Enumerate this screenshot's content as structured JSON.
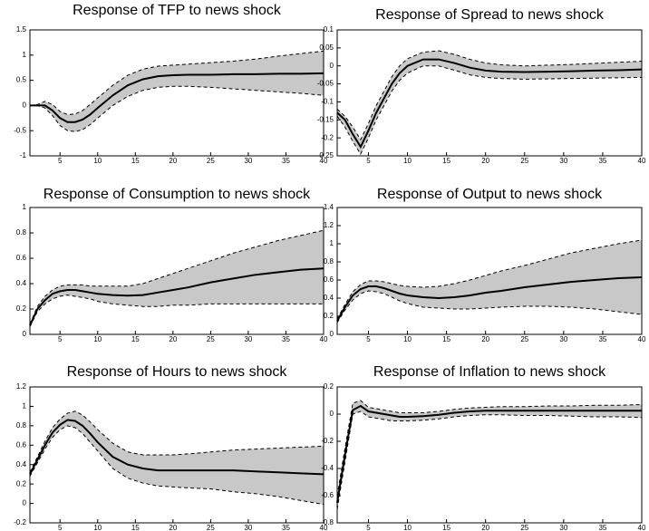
{
  "chart_data": [
    {
      "type": "line",
      "title": "Response of TFP to news shock",
      "x": [
        1,
        2,
        3,
        4,
        5,
        6,
        7,
        8,
        9,
        10,
        12,
        14,
        16,
        18,
        20,
        22,
        25,
        28,
        31,
        34,
        37,
        40
      ],
      "values": [
        0,
        0,
        0,
        -0.1,
        -0.25,
        -0.33,
        -0.33,
        -0.28,
        -0.18,
        -0.05,
        0.2,
        0.4,
        0.52,
        0.58,
        0.6,
        0.61,
        0.61,
        0.62,
        0.62,
        0.63,
        0.63,
        0.64
      ],
      "lower": [
        0,
        0,
        -0.05,
        -0.2,
        -0.4,
        -0.5,
        -0.52,
        -0.48,
        -0.38,
        -0.25,
        0,
        0.18,
        0.3,
        0.36,
        0.38,
        0.38,
        0.36,
        0.33,
        0.3,
        0.27,
        0.24,
        0.2
      ],
      "upper": [
        0,
        0.02,
        0.08,
        0.02,
        -0.12,
        -0.18,
        -0.17,
        -0.1,
        0.02,
        0.15,
        0.4,
        0.6,
        0.72,
        0.78,
        0.8,
        0.82,
        0.85,
        0.88,
        0.92,
        0.98,
        1.03,
        1.08
      ],
      "color": "#000000",
      "band_color": "#c8c8c8",
      "xlim": [
        1,
        40
      ],
      "xticks": [
        5,
        10,
        15,
        20,
        25,
        30,
        35,
        40
      ],
      "ylim": [
        -1,
        1.5
      ],
      "yticks": [
        -1,
        -0.5,
        0,
        0.5,
        1,
        1.5
      ]
    },
    {
      "type": "line",
      "title": "Response of Spread to news shock",
      "x": [
        1,
        2,
        3,
        4,
        5,
        6,
        7,
        8,
        9,
        10,
        12,
        14,
        16,
        18,
        20,
        22,
        25,
        28,
        31,
        34,
        37,
        40
      ],
      "values": [
        -0.13,
        -0.15,
        -0.19,
        -0.225,
        -0.18,
        -0.13,
        -0.09,
        -0.05,
        -0.02,
        0,
        0.018,
        0.018,
        0.008,
        -0.005,
        -0.013,
        -0.016,
        -0.017,
        -0.016,
        -0.015,
        -0.013,
        -0.012,
        -0.01
      ],
      "lower": [
        -0.14,
        -0.17,
        -0.21,
        -0.245,
        -0.2,
        -0.15,
        -0.11,
        -0.07,
        -0.04,
        -0.02,
        0,
        0,
        -0.012,
        -0.025,
        -0.032,
        -0.035,
        -0.037,
        -0.036,
        -0.035,
        -0.034,
        -0.033,
        -0.032
      ],
      "upper": [
        -0.12,
        -0.14,
        -0.17,
        -0.205,
        -0.16,
        -0.11,
        -0.07,
        -0.03,
        0,
        0.02,
        0.038,
        0.042,
        0.032,
        0.018,
        0.008,
        0.003,
        0,
        0.002,
        0.004,
        0.007,
        0.01,
        0.013
      ],
      "color": "#000000",
      "band_color": "#c8c8c8",
      "xlim": [
        1,
        40
      ],
      "xticks": [
        5,
        10,
        15,
        20,
        25,
        30,
        35,
        40
      ],
      "ylim": [
        -0.25,
        0.1
      ],
      "yticks": [
        -0.25,
        -0.2,
        -0.15,
        -0.1,
        -0.05,
        0,
        0.05,
        0.1
      ]
    },
    {
      "type": "line",
      "title": "Response of Consumption to news shock",
      "x": [
        1,
        2,
        3,
        4,
        5,
        6,
        7,
        8,
        9,
        10,
        12,
        14,
        16,
        18,
        20,
        22,
        25,
        28,
        31,
        34,
        37,
        40
      ],
      "values": [
        0.07,
        0.2,
        0.27,
        0.32,
        0.34,
        0.35,
        0.35,
        0.34,
        0.33,
        0.32,
        0.31,
        0.305,
        0.31,
        0.33,
        0.35,
        0.37,
        0.41,
        0.44,
        0.47,
        0.49,
        0.51,
        0.52
      ],
      "lower": [
        0.06,
        0.18,
        0.24,
        0.28,
        0.3,
        0.31,
        0.3,
        0.29,
        0.28,
        0.26,
        0.24,
        0.23,
        0.22,
        0.22,
        0.23,
        0.23,
        0.24,
        0.24,
        0.24,
        0.24,
        0.24,
        0.24
      ],
      "upper": [
        0.08,
        0.22,
        0.3,
        0.35,
        0.38,
        0.39,
        0.39,
        0.39,
        0.38,
        0.38,
        0.38,
        0.38,
        0.4,
        0.44,
        0.48,
        0.52,
        0.58,
        0.64,
        0.69,
        0.74,
        0.78,
        0.82
      ],
      "color": "#000000",
      "band_color": "#c8c8c8",
      "xlim": [
        1,
        40
      ],
      "xticks": [
        5,
        10,
        15,
        20,
        25,
        30,
        35,
        40
      ],
      "ylim": [
        0,
        1
      ],
      "yticks": [
        0,
        0.2,
        0.4,
        0.6,
        0.8,
        1
      ]
    },
    {
      "type": "line",
      "title": "Response of Output to news shock",
      "x": [
        1,
        2,
        3,
        4,
        5,
        6,
        7,
        8,
        9,
        10,
        12,
        14,
        16,
        18,
        20,
        22,
        25,
        28,
        31,
        34,
        37,
        40
      ],
      "values": [
        0.15,
        0.3,
        0.43,
        0.5,
        0.53,
        0.53,
        0.51,
        0.48,
        0.45,
        0.43,
        0.41,
        0.4,
        0.41,
        0.43,
        0.46,
        0.48,
        0.52,
        0.55,
        0.58,
        0.6,
        0.62,
        0.63
      ],
      "lower": [
        0.13,
        0.27,
        0.38,
        0.45,
        0.48,
        0.47,
        0.45,
        0.41,
        0.37,
        0.34,
        0.3,
        0.29,
        0.28,
        0.28,
        0.29,
        0.3,
        0.31,
        0.31,
        0.3,
        0.28,
        0.25,
        0.22
      ],
      "upper": [
        0.17,
        0.33,
        0.47,
        0.55,
        0.59,
        0.59,
        0.58,
        0.56,
        0.54,
        0.53,
        0.52,
        0.53,
        0.56,
        0.6,
        0.65,
        0.7,
        0.76,
        0.83,
        0.9,
        0.95,
        1.0,
        1.04
      ],
      "color": "#000000",
      "band_color": "#c8c8c8",
      "xlim": [
        1,
        40
      ],
      "xticks": [
        5,
        10,
        15,
        20,
        25,
        30,
        35,
        40
      ],
      "ylim": [
        0,
        1.4
      ],
      "yticks": [
        0,
        0.2,
        0.4,
        0.6,
        0.8,
        1,
        1.2,
        1.4
      ]
    },
    {
      "type": "line",
      "title": "Response of Hours to news shock",
      "x": [
        1,
        2,
        3,
        4,
        5,
        6,
        7,
        8,
        9,
        10,
        12,
        14,
        16,
        18,
        20,
        22,
        25,
        28,
        31,
        34,
        37,
        40
      ],
      "values": [
        0.3,
        0.45,
        0.6,
        0.73,
        0.81,
        0.86,
        0.85,
        0.8,
        0.72,
        0.63,
        0.48,
        0.4,
        0.36,
        0.34,
        0.34,
        0.34,
        0.34,
        0.34,
        0.33,
        0.32,
        0.31,
        0.3
      ],
      "lower": [
        0.28,
        0.42,
        0.56,
        0.68,
        0.76,
        0.8,
        0.78,
        0.72,
        0.63,
        0.54,
        0.36,
        0.26,
        0.21,
        0.18,
        0.17,
        0.16,
        0.15,
        0.12,
        0.1,
        0.07,
        0.03,
        -0.01
      ],
      "upper": [
        0.32,
        0.48,
        0.64,
        0.78,
        0.87,
        0.93,
        0.95,
        0.91,
        0.84,
        0.76,
        0.62,
        0.53,
        0.5,
        0.5,
        0.5,
        0.51,
        0.53,
        0.55,
        0.56,
        0.57,
        0.58,
        0.59
      ],
      "color": "#000000",
      "band_color": "#c8c8c8",
      "xlim": [
        1,
        40
      ],
      "xticks": [
        5,
        10,
        15,
        20,
        25,
        30,
        35,
        40
      ],
      "ylim": [
        -0.2,
        1.2
      ],
      "yticks": [
        -0.2,
        0,
        0.2,
        0.4,
        0.6,
        0.8,
        1,
        1.2
      ]
    },
    {
      "type": "line",
      "title": "Response of Inflation to news shock",
      "x": [
        1,
        2,
        3,
        4,
        5,
        6,
        7,
        8,
        9,
        10,
        12,
        14,
        16,
        18,
        20,
        22,
        25,
        28,
        31,
        34,
        37,
        40
      ],
      "values": [
        -0.65,
        -0.3,
        0.03,
        0.06,
        0.02,
        0.01,
        0,
        -0.01,
        -0.02,
        -0.02,
        -0.015,
        -0.005,
        0.01,
        0.02,
        0.025,
        0.025,
        0.025,
        0.025,
        0.025,
        0.025,
        0.025,
        0.025
      ],
      "lower": [
        -0.7,
        -0.35,
        0,
        0.02,
        -0.02,
        -0.03,
        -0.04,
        -0.05,
        -0.05,
        -0.05,
        -0.045,
        -0.035,
        -0.02,
        -0.01,
        -0.005,
        -0.005,
        -0.01,
        -0.01,
        -0.015,
        -0.02,
        -0.02,
        -0.025
      ],
      "upper": [
        -0.6,
        -0.25,
        0.08,
        0.1,
        0.05,
        0.04,
        0.03,
        0.02,
        0.01,
        0.01,
        0.01,
        0.02,
        0.035,
        0.045,
        0.05,
        0.055,
        0.055,
        0.06,
        0.06,
        0.065,
        0.065,
        0.07
      ],
      "color": "#000000",
      "band_color": "#c8c8c8",
      "xlim": [
        1,
        40
      ],
      "xticks": [
        5,
        10,
        15,
        20,
        25,
        30,
        35,
        40
      ],
      "ylim": [
        -0.8,
        0.2
      ],
      "yticks": [
        -0.8,
        -0.6,
        -0.4,
        -0.2,
        0,
        0.2
      ]
    }
  ]
}
